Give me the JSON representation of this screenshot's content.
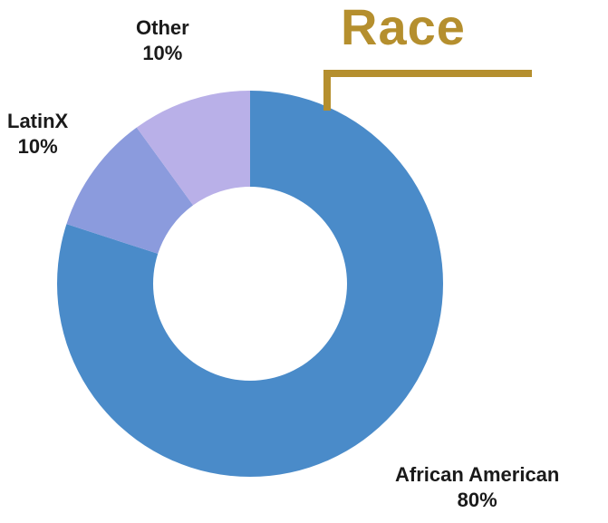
{
  "colors": {
    "title": "#b58f2e",
    "bracket": "#b58f2e",
    "label_text": "#1a1a1a"
  },
  "chart_data": {
    "type": "pie",
    "title": "Race",
    "donut": true,
    "slices": [
      {
        "label": "African American",
        "value": 80,
        "value_label": "80%",
        "color": "#4a8bc9"
      },
      {
        "label": "LatinX",
        "value": 10,
        "value_label": "10%",
        "color": "#8b9bdd"
      },
      {
        "label": "Other",
        "value": 10,
        "value_label": "10%",
        "color": "#b9b0e8"
      }
    ]
  }
}
